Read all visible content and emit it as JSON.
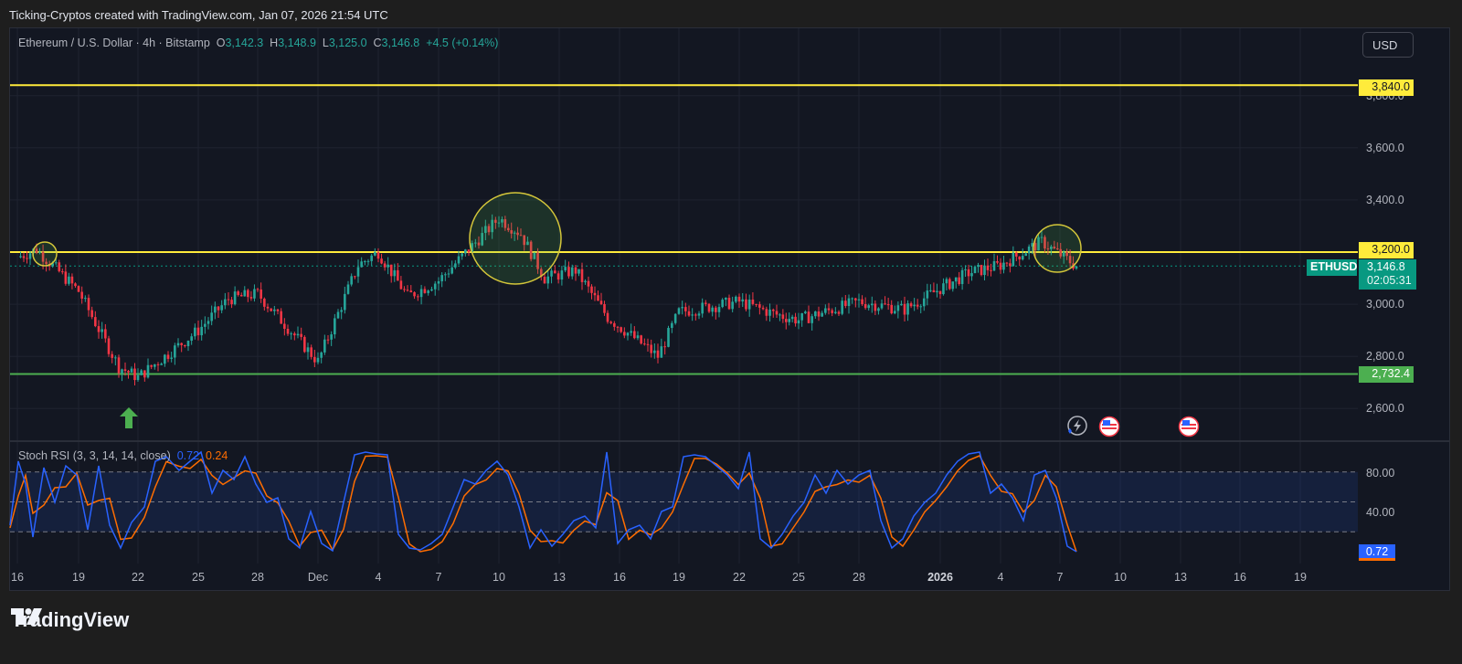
{
  "header": {
    "title": "Ticking-Cryptos created with TradingView.com, Jan 07, 2026 21:54 UTC"
  },
  "legend": {
    "symbol": "Ethereum / U.S. Dollar · 4h · Bitstamp",
    "open_label": "O",
    "open": "3,142.3",
    "high_label": "H",
    "high": "3,148.9",
    "low_label": "L",
    "low": "3,125.0",
    "close_label": "C",
    "close": "3,146.8",
    "change": "+4.5 (+0.14%)"
  },
  "currency_button": "USD",
  "price_axis": {
    "labels": [
      "3,800.0",
      "3,600.0",
      "3,400.0",
      "3,000.0",
      "2,800.0",
      "2,600.0"
    ],
    "tags": {
      "resistance_top": "3,840.0",
      "resistance_mid": "3,200.0",
      "support": "2,732.4",
      "symbol_tag": "ETHUSD",
      "last_price": "3,146.8",
      "countdown": "02:05:31"
    }
  },
  "stoch_rsi": {
    "title": "Stoch RSI (3, 3, 14, 14, close)",
    "k_value": "0.72",
    "d_value": "0.24",
    "axis_labels": [
      "80.00",
      "40.00"
    ],
    "tag": "0.72"
  },
  "time_axis": [
    "16",
    "19",
    "22",
    "25",
    "28",
    "Dec",
    "4",
    "7",
    "10",
    "13",
    "16",
    "19",
    "22",
    "25",
    "28",
    "2026",
    "4",
    "7",
    "10",
    "13",
    "16",
    "19"
  ],
  "branding": {
    "logo_text": "TradingView"
  },
  "colors": {
    "up": "#26a69a",
    "down": "#f23645",
    "yellow_line": "#ffeb3b",
    "green_line": "#4caf50",
    "k_line": "#2962ff",
    "d_line": "#ff6d00",
    "background": "#131722"
  },
  "chart_data": {
    "type": "candlestick",
    "title": "Ethereum / U.S. Dollar · 4h · Bitstamp",
    "xlabel": "",
    "ylabel": "USD",
    "ylim": [
      2540,
      3950
    ],
    "x_ticks": [
      "Nov 16",
      "19",
      "22",
      "25",
      "28",
      "Dec",
      "4",
      "7",
      "10",
      "13",
      "16",
      "19",
      "22",
      "25",
      "28",
      "2026",
      "4",
      "7",
      "10",
      "13",
      "16",
      "19"
    ],
    "horizontal_lines": [
      {
        "price": 3840.0,
        "color": "#ffeb3b",
        "label": "3,840.0"
      },
      {
        "price": 3200.0,
        "color": "#ffeb3b",
        "label": "3,200.0"
      },
      {
        "price": 2732.4,
        "color": "#4caf50",
        "label": "2,732.4"
      }
    ],
    "approx_close_path": [
      {
        "date": "Nov 16",
        "price": 3180
      },
      {
        "date": "Nov 17",
        "price": 3210
      },
      {
        "date": "Nov 19",
        "price": 3050
      },
      {
        "date": "Nov 21",
        "price": 2760
      },
      {
        "date": "Nov 22",
        "price": 2720
      },
      {
        "date": "Nov 25",
        "price": 2900
      },
      {
        "date": "Nov 27",
        "price": 3020
      },
      {
        "date": "Nov 29",
        "price": 3040
      },
      {
        "date": "Dec 1",
        "price": 2780
      },
      {
        "date": "Dec 3",
        "price": 3150
      },
      {
        "date": "Dec 4",
        "price": 3200
      },
      {
        "date": "Dec 6",
        "price": 3030
      },
      {
        "date": "Dec 8",
        "price": 3090
      },
      {
        "date": "Dec 10",
        "price": 3330
      },
      {
        "date": "Dec 11",
        "price": 3270
      },
      {
        "date": "Dec 12",
        "price": 3100
      },
      {
        "date": "Dec 14",
        "price": 3130
      },
      {
        "date": "Dec 15",
        "price": 2950
      },
      {
        "date": "Dec 18",
        "price": 2800
      },
      {
        "date": "Dec 19",
        "price": 2970
      },
      {
        "date": "Dec 22",
        "price": 3010
      },
      {
        "date": "Dec 24",
        "price": 2960
      },
      {
        "date": "Dec 27",
        "price": 2940
      },
      {
        "date": "Dec 29",
        "price": 3010
      },
      {
        "date": "Dec 31",
        "price": 2980
      },
      {
        "date": "Jan 2",
        "price": 3060
      },
      {
        "date": "Jan 3",
        "price": 3120
      },
      {
        "date": "Jan 5",
        "price": 3150
      },
      {
        "date": "Jan 6",
        "price": 3240
      },
      {
        "date": "Jan 7",
        "price": 3146.8
      }
    ],
    "last": {
      "open": 3142.3,
      "high": 3148.9,
      "low": 3125.0,
      "close": 3146.8,
      "change": 4.5,
      "change_pct": 0.14
    },
    "annotations": [
      {
        "type": "circle",
        "date": "Nov 17",
        "price": 3200
      },
      {
        "type": "circle",
        "date": "Dec 10-12",
        "price": 3300
      },
      {
        "type": "circle",
        "date": "Jan 6-7",
        "price": 3220
      },
      {
        "type": "arrow_up",
        "date": "Nov 21",
        "color": "#4caf50"
      }
    ],
    "indicator": {
      "name": "Stoch RSI (3, 3, 14, 14, close)",
      "k": 0.72,
      "d": 0.24,
      "bands": [
        80,
        50,
        20
      ],
      "ylim": [
        0,
        100
      ]
    }
  }
}
